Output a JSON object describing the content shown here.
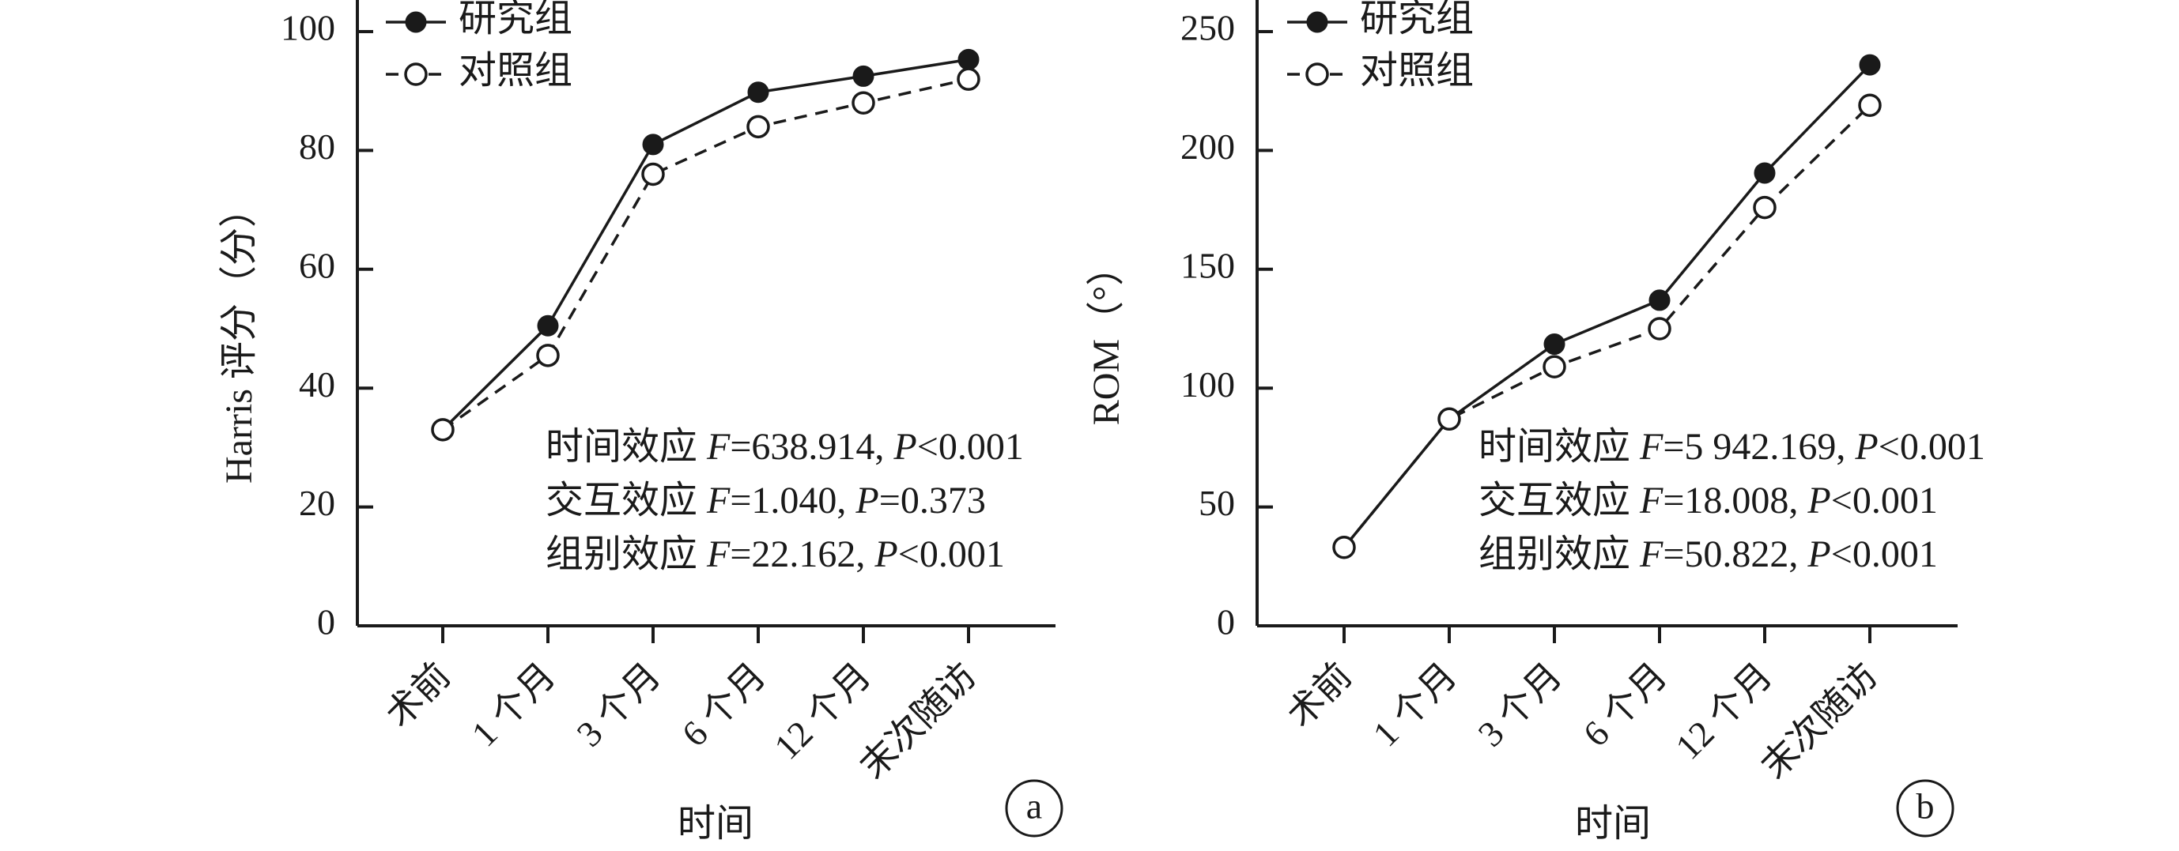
{
  "chart_data": [
    {
      "type": "line",
      "panel_label": "a",
      "xlabel": "时间",
      "ylabel": "Harris 评分（分）",
      "categories": [
        "术前",
        "1 个月",
        "3 个月",
        "6 个月",
        "12 个月",
        "末次随访"
      ],
      "ylim": [
        0,
        100
      ],
      "yticks": [
        "0",
        "20",
        "40",
        "60",
        "80",
        "100"
      ],
      "grid": false,
      "legend_position": "top-left",
      "series": [
        {
          "name": "研究组",
          "marker": "filled-circle",
          "line": "solid",
          "values": [
            33,
            50.5,
            81,
            89.8,
            92.5,
            95.3
          ]
        },
        {
          "name": "对照组",
          "marker": "open-circle",
          "line": "dashed",
          "values": [
            33,
            45.5,
            76,
            84,
            88,
            92
          ]
        }
      ],
      "annotations": [
        {
          "label": "时间效应 ",
          "F": "=638.914",
          "P": "<0.001"
        },
        {
          "label": "交互效应 ",
          "F": "=1.040",
          "P": "=0.373"
        },
        {
          "label": "组别效应 ",
          "F": "=22.162",
          "P": "<0.001"
        }
      ]
    },
    {
      "type": "line",
      "panel_label": "b",
      "xlabel": "时间",
      "ylabel": "ROM（°）",
      "categories": [
        "术前",
        "1 个月",
        "3 个月",
        "6 个月",
        "12 个月",
        "末次随访"
      ],
      "ylim": [
        0,
        250
      ],
      "yticks": [
        "0",
        "50",
        "100",
        "150",
        "200",
        "250"
      ],
      "grid": false,
      "legend_position": "top-left",
      "series": [
        {
          "name": "研究组",
          "marker": "filled-circle",
          "line": "solid",
          "values": [
            33,
            87,
            118.5,
            137,
            190.5,
            236
          ]
        },
        {
          "name": "对照组",
          "marker": "open-circle",
          "line": "dashed",
          "values": [
            33,
            87,
            109,
            125,
            176,
            219
          ]
        }
      ],
      "annotations": [
        {
          "label": "时间效应 ",
          "F": "=5 942.169",
          "P": "<0.001"
        },
        {
          "label": "交互效应 ",
          "F": "=18.008",
          "P": "<0.001"
        },
        {
          "label": "组别效应 ",
          "F": "=50.822",
          "P": "<0.001"
        }
      ]
    }
  ]
}
